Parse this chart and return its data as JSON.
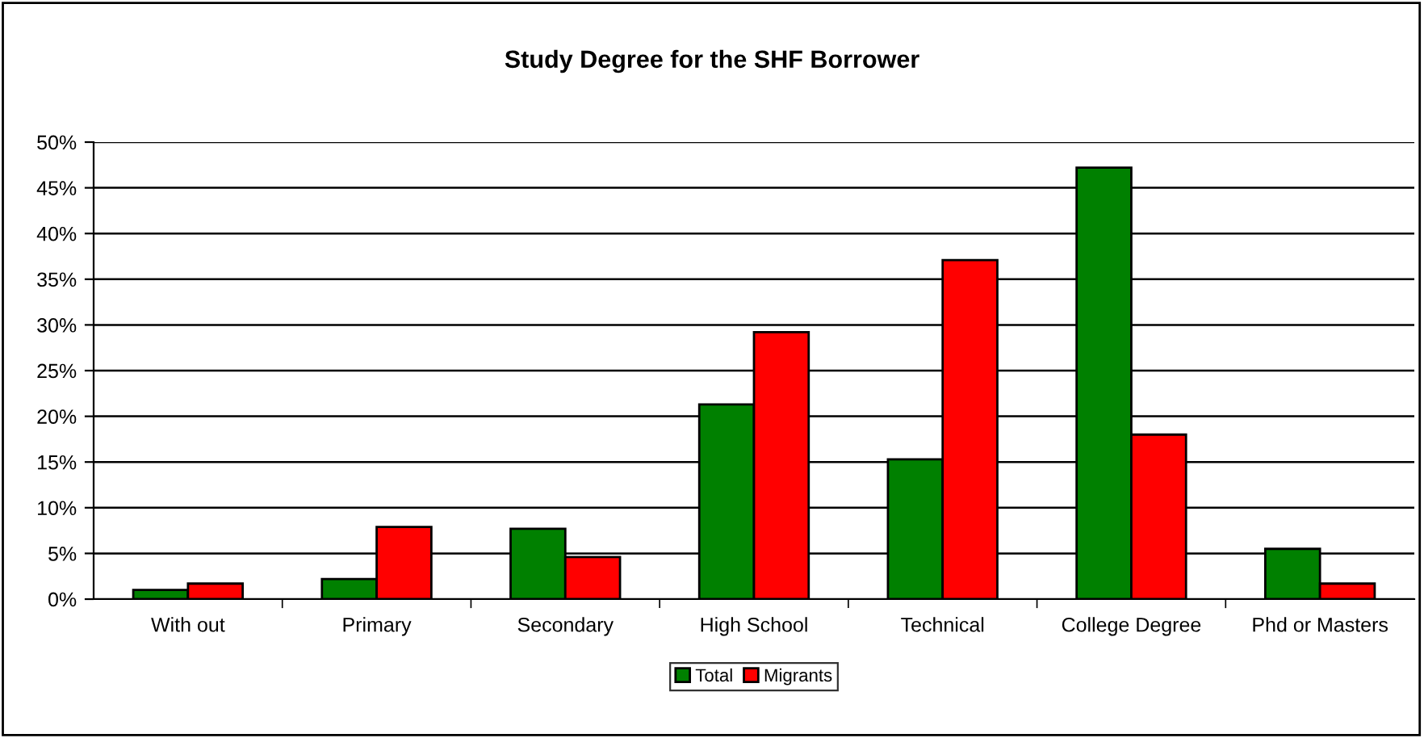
{
  "chart_data": {
    "type": "bar",
    "title": "Study Degree for the SHF Borrower",
    "categories": [
      "With out",
      "Primary",
      "Secondary",
      "High School",
      "Technical",
      "College Degree",
      "Phd or Masters"
    ],
    "series": [
      {
        "name": "Total",
        "color": "#008000",
        "values": [
          1.0,
          2.2,
          7.7,
          21.3,
          15.3,
          47.2,
          5.5
        ]
      },
      {
        "name": "Migrants",
        "color": "#ff0000",
        "values": [
          1.7,
          7.9,
          4.6,
          29.2,
          37.1,
          18.0,
          1.7
        ]
      }
    ],
    "ylim": [
      0,
      50
    ],
    "yticks": [
      {
        "value": 0,
        "label": "0%"
      },
      {
        "value": 5,
        "label": "5%"
      },
      {
        "value": 10,
        "label": "10%"
      },
      {
        "value": 15,
        "label": "15%"
      },
      {
        "value": 20,
        "label": "20%"
      },
      {
        "value": 25,
        "label": "25%"
      },
      {
        "value": 30,
        "label": "30%"
      },
      {
        "value": 35,
        "label": "35%"
      },
      {
        "value": 40,
        "label": "40%"
      },
      {
        "value": 45,
        "label": "45%"
      },
      {
        "value": 50,
        "label": "50%"
      }
    ],
    "grid": "y",
    "legend": "bottom"
  }
}
